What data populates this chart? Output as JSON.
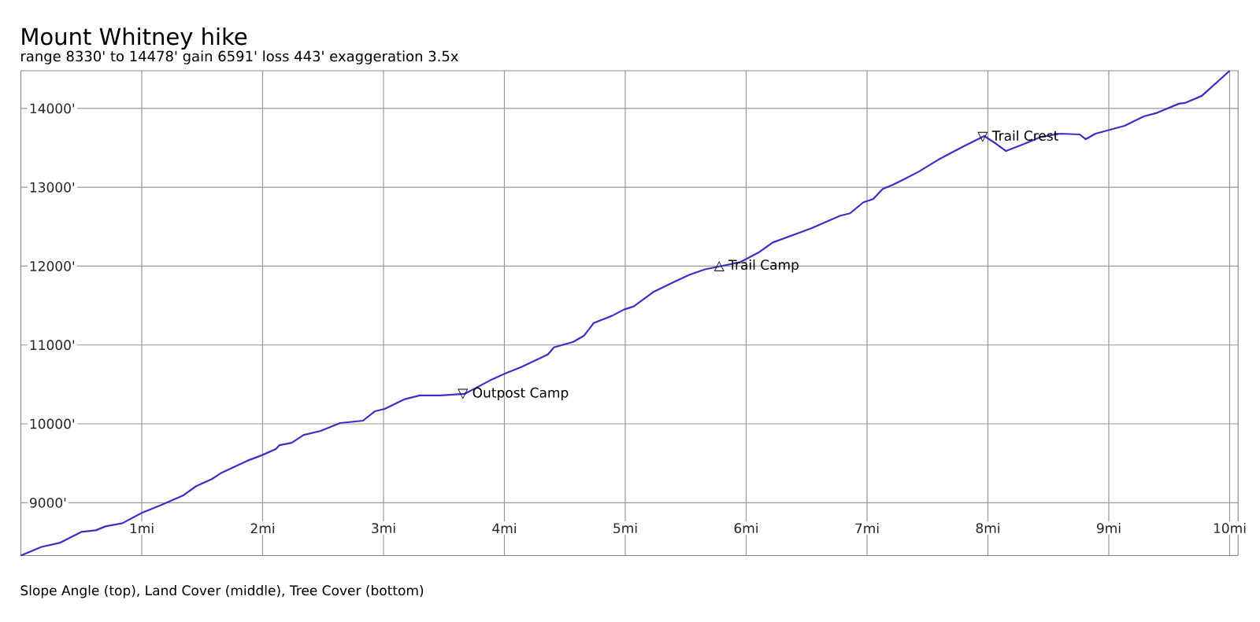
{
  "chart_data": {
    "type": "line",
    "title": "Mount Whitney hike",
    "subtitle": "range 8330' to 14478'  gain 6591'  loss 443'  exaggeration 3.5x",
    "x": [
      0,
      0.17,
      0.32,
      0.5,
      0.62,
      0.7,
      0.84,
      1.0,
      1.16,
      1.34,
      1.45,
      1.58,
      1.66,
      1.87,
      1.99,
      2.11,
      2.14,
      2.24,
      2.34,
      2.48,
      2.64,
      2.83,
      2.93,
      3.01,
      3.17,
      3.3,
      3.47,
      3.67,
      3.88,
      4.01,
      4.14,
      4.36,
      4.41,
      4.57,
      4.66,
      4.74,
      4.89,
      4.99,
      5.07,
      5.23,
      5.39,
      5.53,
      5.66,
      5.79,
      5.95,
      6.11,
      6.22,
      6.54,
      6.78,
      6.86,
      6.97,
      7.05,
      7.13,
      7.21,
      7.29,
      7.43,
      7.59,
      7.8,
      7.97,
      8.07,
      8.15,
      8.3,
      8.44,
      8.6,
      8.76,
      8.81,
      8.89,
      9.13,
      9.29,
      9.39,
      9.58,
      9.63,
      9.77,
      10.0
    ],
    "series": [
      {
        "color": "#3a30c8",
        "values": [
          8330,
          8440,
          8490,
          8630,
          8650,
          8700,
          8740,
          8870,
          8970,
          9090,
          9210,
          9300,
          9380,
          9530,
          9600,
          9680,
          9730,
          9760,
          9860,
          9910,
          10010,
          10040,
          10160,
          10190,
          10310,
          10360,
          10360,
          10380,
          10550,
          10640,
          10720,
          10880,
          10970,
          11040,
          11120,
          11280,
          11370,
          11450,
          11490,
          11670,
          11790,
          11890,
          11960,
          12000,
          12050,
          12180,
          12300,
          12480,
          12640,
          12670,
          12810,
          12850,
          12980,
          13030,
          13090,
          13200,
          13350,
          13520,
          13650,
          13550,
          13460,
          13550,
          13640,
          13680,
          13670,
          13610,
          13680,
          13780,
          13900,
          13940,
          14060,
          14070,
          14160,
          14478
        ]
      }
    ],
    "xlim": [
      0,
      10.07
    ],
    "ylim": [
      8330,
      14478
    ],
    "xticks": [
      {
        "value": 1,
        "label": "1mi"
      },
      {
        "value": 2,
        "label": "2mi"
      },
      {
        "value": 3,
        "label": "3mi"
      },
      {
        "value": 4,
        "label": "4mi"
      },
      {
        "value": 5,
        "label": "5mi"
      },
      {
        "value": 6,
        "label": "6mi"
      },
      {
        "value": 7,
        "label": "7mi"
      },
      {
        "value": 8,
        "label": "8mi"
      },
      {
        "value": 9,
        "label": "9mi"
      },
      {
        "value": 10,
        "label": "10mi"
      }
    ],
    "yticks": [
      {
        "value": 9000,
        "label": "9000'"
      },
      {
        "value": 10000,
        "label": "10000'"
      },
      {
        "value": 11000,
        "label": "11000'"
      },
      {
        "value": 12000,
        "label": "12000'"
      },
      {
        "value": 13000,
        "label": "13000'"
      },
      {
        "value": 14000,
        "label": "14000'"
      }
    ],
    "grid": true,
    "marker": "none",
    "line_style": "solid",
    "annotations": [
      {
        "text": "▽ Outpost Camp",
        "x": 3.67,
        "y": 10380
      },
      {
        "text": "△ Trail Camp",
        "x": 5.79,
        "y": 12003
      },
      {
        "text": "▽ Trail Crest",
        "x": 7.97,
        "y": 13647
      },
      "Slope Angle (top), Land Cover (middle), Tree Cover (bottom)"
    ]
  }
}
